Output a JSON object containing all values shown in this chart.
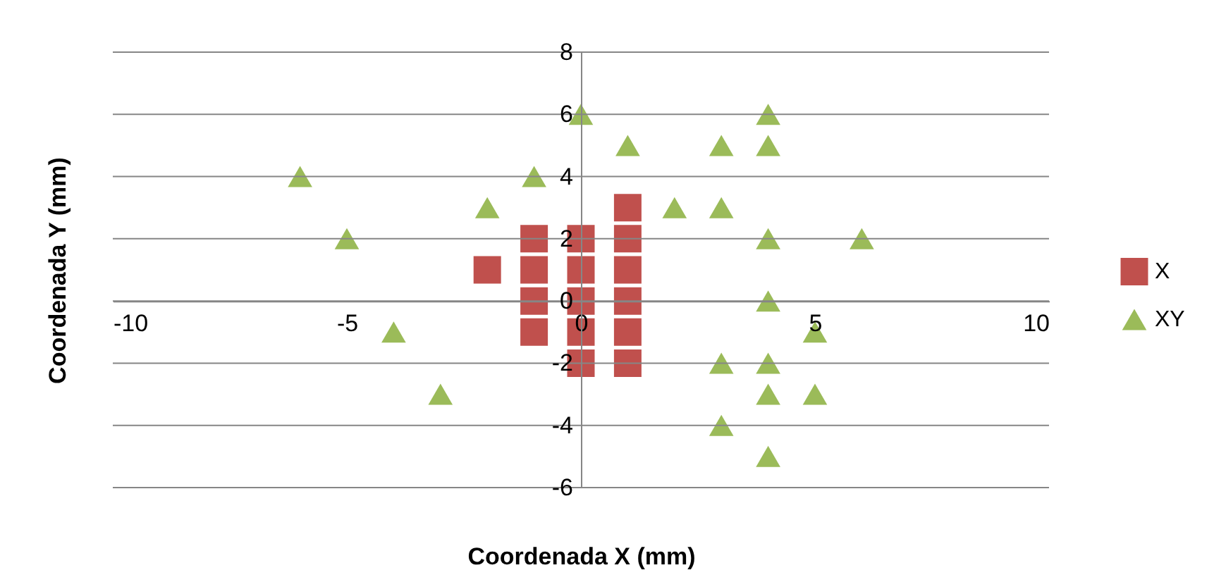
{
  "chart_data": {
    "type": "scatter",
    "xlabel": "Coordenada X (mm)",
    "ylabel": "Coordenada Y (mm)",
    "xlim": [
      -10,
      10
    ],
    "xticks": [
      -10,
      -5,
      0,
      5,
      10
    ],
    "ylim": [
      -6,
      8
    ],
    "yticks": [
      -6,
      -4,
      -2,
      0,
      2,
      4,
      6,
      8
    ],
    "grid": "y",
    "legend": "right",
    "series": [
      {
        "name": "X",
        "color": "#c0504d",
        "marker": "square",
        "x": [
          -2,
          -1,
          -1,
          -1,
          -1,
          0,
          0,
          0,
          0,
          0,
          1,
          1,
          1,
          1,
          1,
          1
        ],
        "values": [
          1,
          2,
          1,
          0,
          -1,
          2,
          1,
          0,
          -1,
          -2,
          3,
          2,
          1,
          0,
          -1,
          -2
        ]
      },
      {
        "name": "XY",
        "color": "#9bbb59",
        "marker": "triangle",
        "x": [
          -6,
          -5,
          -4,
          -3,
          -2,
          -1,
          0,
          1,
          2,
          3,
          3,
          3,
          3,
          4,
          4,
          4,
          4,
          4,
          4,
          4,
          5,
          5,
          6
        ],
        "values": [
          4,
          2,
          -1,
          -3,
          3,
          4,
          6,
          5,
          3,
          5,
          3,
          -2,
          -4,
          6,
          5,
          2,
          0,
          -2,
          -3,
          -5,
          -1,
          -3,
          2
        ]
      }
    ]
  }
}
